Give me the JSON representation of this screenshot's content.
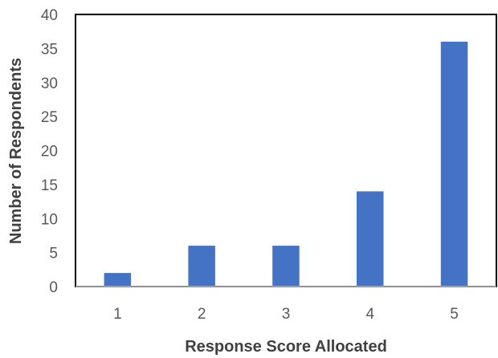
{
  "chart_data": {
    "type": "bar",
    "title": "",
    "xlabel": "Response Score Allocated",
    "ylabel": "Number of Respondents",
    "categories": [
      "1",
      "2",
      "3",
      "4",
      "5"
    ],
    "values": [
      2,
      6,
      6,
      14,
      36
    ],
    "ylim": [
      0,
      40
    ],
    "yticks": [
      0,
      5,
      10,
      15,
      20,
      25,
      30,
      35,
      40
    ],
    "bar_color": "#4472C4",
    "grid": false,
    "legend": "none"
  }
}
